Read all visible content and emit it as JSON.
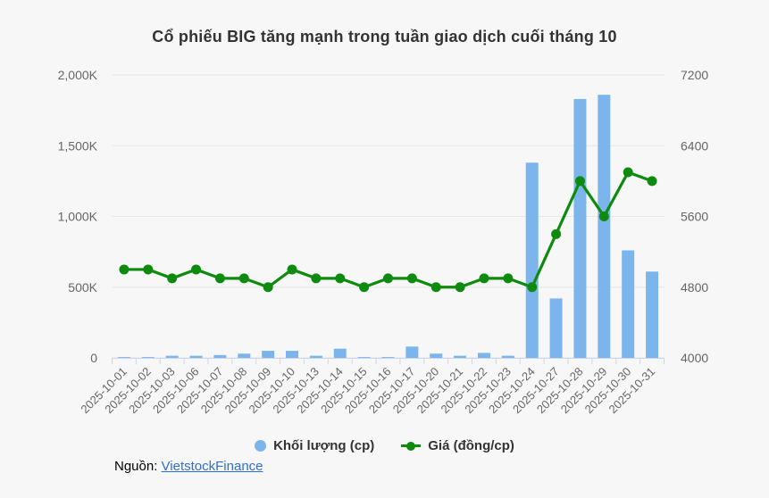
{
  "title": "Cổ phiếu BIG tăng mạnh trong tuần giao dịch cuối tháng 10",
  "legend": [
    {
      "label": "Khối lượng (cp)",
      "marker": "circle",
      "color": "#7cb5ec"
    },
    {
      "label": "Giá (đồng/cp)",
      "marker": "line-dot",
      "color": "#0e8a0e"
    }
  ],
  "source": {
    "prefix": "Nguồn:",
    "link_text": "VietstockFinance",
    "link_color": "#2f6fd8"
  },
  "colors": {
    "background": "#f7f7f7",
    "gridline": "#e6e6e6",
    "axis_line": "#ccd6eb",
    "axis_text": "#666666",
    "title_text": "#333333",
    "bar": "#7cb5ec",
    "line": "#0e8a0e"
  },
  "chart_data": {
    "type": "bar",
    "subtype": "column+line dual axis combo",
    "title": "Cổ phiếu BIG tăng mạnh trong tuần giao dịch cuối tháng 10",
    "categories": [
      "2025-10-01",
      "2025-10-02",
      "2025-10-03",
      "2025-10-06",
      "2025-10-07",
      "2025-10-08",
      "2025-10-09",
      "2025-10-10",
      "2025-10-13",
      "2025-10-14",
      "2025-10-15",
      "2025-10-16",
      "2025-10-17",
      "2025-10-20",
      "2025-10-21",
      "2025-10-22",
      "2025-10-23",
      "2025-10-24",
      "2025-10-27",
      "2025-10-28",
      "2025-10-29",
      "2025-10-30",
      "2025-10-31"
    ],
    "series": [
      {
        "name": "Khối lượng (cp)",
        "type": "column",
        "y_axis": "left",
        "color": "#7cb5ec",
        "values": [
          5000,
          5000,
          15000,
          15000,
          20000,
          30000,
          50000,
          50000,
          15000,
          65000,
          5000,
          5000,
          80000,
          30000,
          15000,
          35000,
          15000,
          1380000,
          420000,
          1830000,
          1860000,
          760000,
          610000
        ]
      },
      {
        "name": "Giá (đồng/cp)",
        "type": "line",
        "y_axis": "right",
        "color": "#0e8a0e",
        "values": [
          5000,
          5000,
          4900,
          5000,
          4900,
          4900,
          4800,
          5000,
          4900,
          4900,
          4800,
          4900,
          4900,
          4800,
          4800,
          4900,
          4900,
          4800,
          5400,
          6000,
          5600,
          6100,
          6000
        ]
      }
    ],
    "left_axis": {
      "min": 0,
      "max": 2000000,
      "tick_labels": [
        "0",
        "500K",
        "1,000K",
        "1,500K",
        "2,000K"
      ]
    },
    "right_axis": {
      "min": 4000,
      "max": 7200,
      "tick_labels": [
        "4000",
        "4800",
        "5600",
        "6400",
        "7200"
      ]
    },
    "grid": true,
    "x_labels_rotation": -45,
    "legend_position": "bottom"
  }
}
